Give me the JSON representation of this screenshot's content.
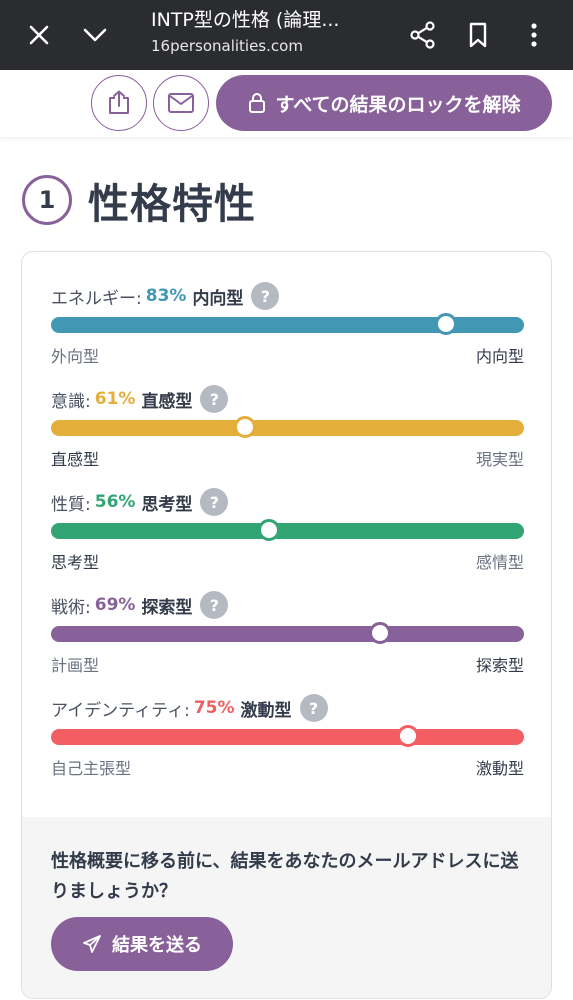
{
  "browser": {
    "title": "INTP型の性格 (論理...",
    "url": "16personalities.com"
  },
  "actions": {
    "unlock_label": "すべての結果のロックを解除"
  },
  "section": {
    "number": "1",
    "title": "性格特性"
  },
  "colors": {
    "accent": "#88619a",
    "energy": "#4298b4",
    "mind": "#e4ae3a",
    "nature": "#33a474",
    "tactics": "#88619a",
    "identity": "#f25e62"
  },
  "traits": [
    {
      "label": "エネルギー:",
      "percent": "83%",
      "type": "内向型",
      "left": "外向型",
      "right": "内向型",
      "value": 83.5,
      "color": "#4298b4"
    },
    {
      "label": "意識:",
      "percent": "61%",
      "type": "直感型",
      "left": "直感型",
      "right": "現実型",
      "value": 41,
      "color": "#e4ae3a"
    },
    {
      "label": "性質:",
      "percent": "56%",
      "type": "思考型",
      "left": "思考型",
      "right": "感情型",
      "value": 46,
      "color": "#33a474"
    },
    {
      "label": "戦術:",
      "percent": "69%",
      "type": "探索型",
      "left": "計画型",
      "right": "探索型",
      "value": 69.5,
      "color": "#88619a"
    },
    {
      "label": "アイデンティティ:",
      "percent": "75%",
      "type": "激動型",
      "left": "自己主張型",
      "right": "激動型",
      "value": 75.5,
      "color": "#f25e62"
    }
  ],
  "footer": {
    "text": "性格概要に移る前に、結果をあなたのメールアドレスに送りましょうか？",
    "send_label": "結果を送る"
  },
  "help_glyph": "?"
}
